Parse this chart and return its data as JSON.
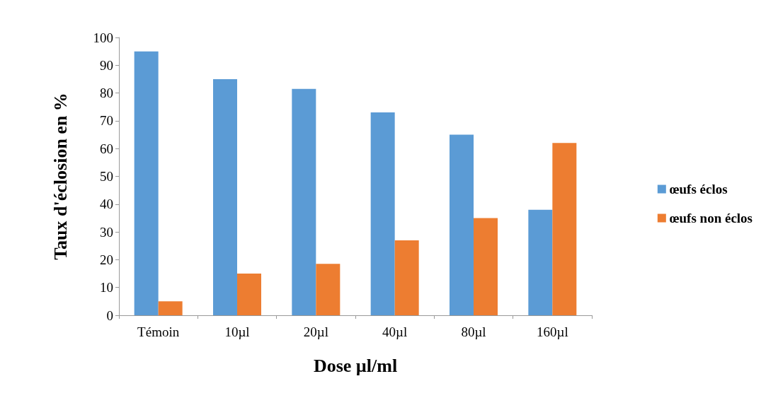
{
  "chart_data": {
    "type": "bar",
    "xlabel": "Dose µl/ml",
    "ylabel": "Taux d'éclosion en %",
    "categories": [
      "Témoin",
      "10µl",
      "20µl",
      "40µl",
      "80µl",
      "160µl"
    ],
    "series": [
      {
        "name": "œufs éclos",
        "color": "#5b9bd5",
        "values": [
          95,
          85,
          81.5,
          73,
          65,
          38
        ]
      },
      {
        "name": "œufs non éclos",
        "color": "#ed7d31",
        "values": [
          5,
          15,
          18.5,
          27,
          35,
          62
        ]
      }
    ],
    "ylim": [
      0,
      100
    ],
    "yticks": [
      0,
      10,
      20,
      30,
      40,
      50,
      60,
      70,
      80,
      90,
      100
    ],
    "grid": false,
    "legend": "right"
  }
}
